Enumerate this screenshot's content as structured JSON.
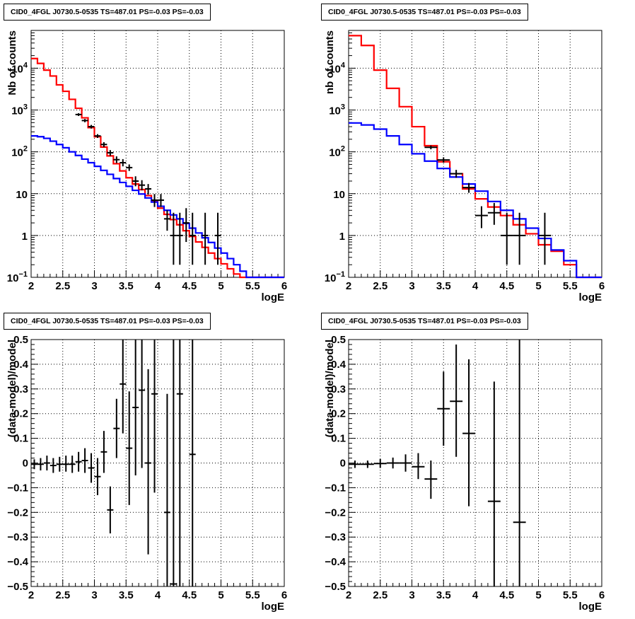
{
  "chart_data": [
    {
      "type": "line",
      "panel": "top-left",
      "title": "CID0_4FGL J0730.5-0535 TS=487.01 PS=-0.03 PS=-0.03",
      "xlabel": "logE",
      "ylabel": "Nb of counts",
      "xlim": [
        2,
        6
      ],
      "ylim": [
        0.1,
        80000
      ],
      "yscale": "log",
      "grid": true,
      "x_ticks": [
        "2",
        "2.5",
        "3",
        "3.5",
        "4",
        "4.5",
        "5",
        "5.5",
        "6"
      ],
      "y_ticks": [
        {
          "v": 0.1,
          "label": "10",
          "sup": "−1"
        },
        {
          "v": 1,
          "label": "1",
          "sup": ""
        },
        {
          "v": 10,
          "label": "10",
          "sup": ""
        },
        {
          "v": 100,
          "label": "10",
          "sup": "2"
        },
        {
          "v": 1000,
          "label": "10",
          "sup": "3"
        },
        {
          "v": 10000,
          "label": "10",
          "sup": "4"
        }
      ],
      "series": [
        {
          "kind": "step",
          "color": "#ff0000",
          "edges": [
            2.0,
            2.1,
            2.2,
            2.3,
            2.4,
            2.5,
            2.6,
            2.7,
            2.8,
            2.9,
            3.0,
            3.1,
            3.2,
            3.3,
            3.4,
            3.5,
            3.6,
            3.7,
            3.8,
            3.9,
            4.0,
            4.1,
            4.2,
            4.3,
            4.4,
            4.5,
            4.6,
            4.7,
            4.8,
            4.9,
            5.0,
            5.1,
            5.2,
            5.3,
            5.4,
            5.5,
            5.6,
            6.0
          ],
          "values": [
            17000,
            13000,
            9000,
            6500,
            4000,
            2800,
            1800,
            1100,
            650,
            380,
            230,
            130,
            80,
            52,
            35,
            24,
            17,
            12.5,
            9,
            6.5,
            4.5,
            3.2,
            2.4,
            1.8,
            1.3,
            0.95,
            0.7,
            0.52,
            0.38,
            0.28,
            0.21,
            0.16,
            0.12,
            0.1,
            0.1,
            0.1,
            0.1
          ]
        },
        {
          "kind": "step",
          "color": "#0000ff",
          "edges": [
            2.0,
            2.1,
            2.2,
            2.3,
            2.4,
            2.5,
            2.6,
            2.7,
            2.8,
            2.9,
            3.0,
            3.1,
            3.2,
            3.3,
            3.4,
            3.5,
            3.6,
            3.7,
            3.8,
            3.9,
            4.0,
            4.1,
            4.2,
            4.3,
            4.4,
            4.5,
            4.6,
            4.7,
            4.8,
            4.9,
            5.0,
            5.1,
            5.2,
            5.3,
            5.4,
            5.5,
            5.6,
            6.0
          ],
          "values": [
            240,
            230,
            210,
            180,
            150,
            125,
            100,
            82,
            67,
            55,
            45,
            36,
            29,
            23,
            18.5,
            15,
            12,
            9.8,
            7.9,
            6.3,
            5,
            4,
            3.1,
            2.5,
            1.95,
            1.5,
            1.15,
            0.88,
            0.68,
            0.5,
            0.38,
            0.28,
            0.2,
            0.14,
            0.1,
            0.1,
            0.1
          ]
        },
        {
          "kind": "errorbar",
          "color": "#000000",
          "points": [
            {
              "x": 2.75,
              "xe": 0.05,
              "y": 780,
              "lo": 720,
              "hi": 840
            },
            {
              "x": 2.85,
              "xe": 0.05,
              "y": 560,
              "lo": 510,
              "hi": 610
            },
            {
              "x": 2.95,
              "xe": 0.05,
              "y": 400,
              "lo": 360,
              "hi": 440
            },
            {
              "x": 3.05,
              "xe": 0.05,
              "y": 240,
              "lo": 215,
              "hi": 265
            },
            {
              "x": 3.15,
              "xe": 0.05,
              "y": 150,
              "lo": 130,
              "hi": 170
            },
            {
              "x": 3.25,
              "xe": 0.05,
              "y": 95,
              "lo": 80,
              "hi": 110
            },
            {
              "x": 3.35,
              "xe": 0.05,
              "y": 65,
              "lo": 54,
              "hi": 78
            },
            {
              "x": 3.45,
              "xe": 0.05,
              "y": 55,
              "lo": 45,
              "hi": 67
            },
            {
              "x": 3.55,
              "xe": 0.05,
              "y": 42,
              "lo": 35,
              "hi": 50
            },
            {
              "x": 3.65,
              "xe": 0.05,
              "y": 20,
              "lo": 15,
              "hi": 26
            },
            {
              "x": 3.75,
              "xe": 0.05,
              "y": 16,
              "lo": 12,
              "hi": 21
            },
            {
              "x": 3.85,
              "xe": 0.05,
              "y": 13,
              "lo": 9.5,
              "hi": 17
            },
            {
              "x": 3.95,
              "xe": 0.05,
              "y": 7,
              "lo": 4.8,
              "hi": 9.8
            },
            {
              "x": 4.05,
              "xe": 0.05,
              "y": 7,
              "lo": 4.8,
              "hi": 9.8
            },
            {
              "x": 4.15,
              "xe": 0.05,
              "y": 2.5,
              "lo": 1.3,
              "hi": 4
            },
            {
              "x": 4.25,
              "xe": 0.05,
              "y": 1,
              "lo": 0.2,
              "hi": 3.5
            },
            {
              "x": 4.35,
              "xe": 0.05,
              "y": 1,
              "lo": 0.2,
              "hi": 3.5
            },
            {
              "x": 4.45,
              "xe": 0.05,
              "y": 2,
              "lo": 0.7,
              "hi": 4.5
            },
            {
              "x": 4.55,
              "xe": 0.05,
              "y": 1,
              "lo": 0.2,
              "hi": 3.5
            },
            {
              "x": 4.75,
              "xe": 0.05,
              "y": 1,
              "lo": 0.2,
              "hi": 3.5
            },
            {
              "x": 4.95,
              "xe": 0.05,
              "y": 1,
              "lo": 0.2,
              "hi": 3.5
            }
          ]
        }
      ]
    },
    {
      "type": "line",
      "panel": "top-right",
      "title": "CID0_4FGL J0730.5-0535 TS=487.01 PS=-0.03 PS=-0.03",
      "xlabel": "logE",
      "ylabel": "nb of counts",
      "xlim": [
        2,
        6
      ],
      "ylim": [
        0.1,
        80000
      ],
      "yscale": "log",
      "grid": true,
      "x_ticks": [
        "2",
        "2.5",
        "3",
        "3.5",
        "4",
        "4.5",
        "5",
        "5.5",
        "6"
      ],
      "y_ticks": [
        {
          "v": 0.1,
          "label": "10",
          "sup": "−1"
        },
        {
          "v": 1,
          "label": "1",
          "sup": ""
        },
        {
          "v": 10,
          "label": "10",
          "sup": ""
        },
        {
          "v": 100,
          "label": "10",
          "sup": "2"
        },
        {
          "v": 1000,
          "label": "10",
          "sup": "3"
        },
        {
          "v": 10000,
          "label": "10",
          "sup": "4"
        }
      ],
      "series": [
        {
          "kind": "step",
          "color": "#ff0000",
          "edges": [
            2.0,
            2.2,
            2.4,
            2.6,
            2.8,
            3.0,
            3.2,
            3.4,
            3.6,
            3.8,
            4.0,
            4.2,
            4.4,
            4.6,
            4.8,
            5.0,
            5.2,
            5.4,
            5.6,
            6.0
          ],
          "values": [
            60000,
            35000,
            9000,
            3300,
            1200,
            400,
            140,
            58,
            30,
            13,
            7.5,
            4.8,
            3,
            1.8,
            1.1,
            0.6,
            0.42,
            0.2,
            0.1
          ]
        },
        {
          "kind": "step",
          "color": "#0000ff",
          "edges": [
            2.0,
            2.2,
            2.4,
            2.6,
            2.8,
            3.0,
            3.2,
            3.4,
            3.6,
            3.8,
            4.0,
            4.2,
            4.4,
            4.6,
            4.8,
            5.0,
            5.2,
            5.4,
            5.6,
            6.0
          ],
          "values": [
            490,
            440,
            350,
            240,
            150,
            90,
            60,
            40,
            25,
            17,
            11.5,
            6.5,
            4,
            2.5,
            1.5,
            0.85,
            0.45,
            0.25,
            0.1
          ]
        },
        {
          "kind": "errorbar",
          "color": "#000000",
          "points": [
            {
              "x": 3.3,
              "xe": 0.1,
              "y": 128,
              "lo": 115,
              "hi": 142
            },
            {
              "x": 3.5,
              "xe": 0.1,
              "y": 64,
              "lo": 55,
              "hi": 74
            },
            {
              "x": 3.7,
              "xe": 0.1,
              "y": 30,
              "lo": 24,
              "hi": 37
            },
            {
              "x": 3.9,
              "xe": 0.1,
              "y": 14,
              "lo": 10.5,
              "hi": 18
            },
            {
              "x": 4.1,
              "xe": 0.1,
              "y": 3,
              "lo": 1.5,
              "hi": 5
            },
            {
              "x": 4.3,
              "xe": 0.1,
              "y": 3.5,
              "lo": 1.8,
              "hi": 6
            },
            {
              "x": 4.5,
              "xe": 0.1,
              "y": 1,
              "lo": 0.2,
              "hi": 3.5
            },
            {
              "x": 4.7,
              "xe": 0.1,
              "y": 1,
              "lo": 0.2,
              "hi": 3.5
            },
            {
              "x": 5.1,
              "xe": 0.1,
              "y": 1,
              "lo": 0.2,
              "hi": 3.5
            }
          ]
        }
      ]
    },
    {
      "type": "scatter",
      "panel": "bottom-left",
      "title": "CID0_4FGL J0730.5-0535 TS=487.01 PS=-0.03 PS=-0.03",
      "xlabel": "logE",
      "ylabel": "(data-model)/model",
      "xlim": [
        2,
        6
      ],
      "ylim": [
        -0.5,
        0.5
      ],
      "grid": true,
      "x_ticks": [
        "2",
        "2.5",
        "3",
        "3.5",
        "4",
        "4.5",
        "5",
        "5.5",
        "6"
      ],
      "y_ticks": [
        "−0.5",
        "−0.4",
        "−0.3",
        "−0.2",
        "−0.1",
        "0",
        "0.1",
        "0.2",
        "0.3",
        "0.4",
        "0.5"
      ],
      "series": [
        {
          "kind": "errorbar",
          "color": "#000000",
          "points": [
            {
              "x": 2.05,
              "xe": 0.05,
              "y": -0.005,
              "lo": -0.025,
              "hi": 0.015
            },
            {
              "x": 2.15,
              "xe": 0.05,
              "y": -0.005,
              "lo": -0.03,
              "hi": 0.02
            },
            {
              "x": 2.25,
              "xe": 0.05,
              "y": 0.0,
              "lo": -0.03,
              "hi": 0.03
            },
            {
              "x": 2.35,
              "xe": 0.05,
              "y": -0.01,
              "lo": -0.04,
              "hi": 0.02
            },
            {
              "x": 2.45,
              "xe": 0.05,
              "y": -0.005,
              "lo": -0.035,
              "hi": 0.025
            },
            {
              "x": 2.55,
              "xe": 0.05,
              "y": -0.005,
              "lo": -0.035,
              "hi": 0.03
            },
            {
              "x": 2.65,
              "xe": 0.05,
              "y": -0.005,
              "lo": -0.04,
              "hi": 0.03
            },
            {
              "x": 2.75,
              "xe": 0.05,
              "y": 0.005,
              "lo": -0.035,
              "hi": 0.045
            },
            {
              "x": 2.85,
              "xe": 0.05,
              "y": 0.01,
              "lo": -0.04,
              "hi": 0.06
            },
            {
              "x": 2.95,
              "xe": 0.05,
              "y": -0.02,
              "lo": -0.08,
              "hi": 0.04
            },
            {
              "x": 3.05,
              "xe": 0.05,
              "y": -0.055,
              "lo": -0.13,
              "hi": 0.02
            },
            {
              "x": 3.15,
              "xe": 0.05,
              "y": 0.045,
              "lo": -0.04,
              "hi": 0.13
            },
            {
              "x": 3.25,
              "xe": 0.05,
              "y": -0.19,
              "lo": -0.285,
              "hi": -0.095
            },
            {
              "x": 3.35,
              "xe": 0.05,
              "y": 0.14,
              "lo": 0.02,
              "hi": 0.26
            },
            {
              "x": 3.45,
              "xe": 0.05,
              "y": 0.32,
              "lo": 0.12,
              "hi": 0.5
            },
            {
              "x": 3.55,
              "xe": 0.05,
              "y": 0.06,
              "lo": -0.17,
              "hi": 0.29
            },
            {
              "x": 3.65,
              "xe": 0.05,
              "y": 0.225,
              "lo": -0.05,
              "hi": 0.5
            },
            {
              "x": 3.75,
              "xe": 0.05,
              "y": 0.295,
              "lo": -0.02,
              "hi": 0.5
            },
            {
              "x": 3.85,
              "xe": 0.05,
              "y": 0.0,
              "lo": -0.37,
              "hi": 0.38
            },
            {
              "x": 3.95,
              "xe": 0.05,
              "y": 0.28,
              "lo": -0.12,
              "hi": 0.5
            },
            {
              "x": 4.15,
              "xe": 0.05,
              "y": -0.2,
              "lo": -0.5,
              "hi": 0.28
            },
            {
              "x": 4.25,
              "xe": 0.05,
              "y": -0.49,
              "lo": -0.5,
              "hi": 0.5
            },
            {
              "x": 4.35,
              "xe": 0.05,
              "y": 0.28,
              "lo": -0.5,
              "hi": 0.5
            },
            {
              "x": 4.55,
              "xe": 0.05,
              "y": 0.035,
              "lo": -0.5,
              "hi": 0.5
            }
          ]
        }
      ]
    },
    {
      "type": "scatter",
      "panel": "bottom-right",
      "title": "CID0_4FGL J0730.5-0535 TS=487.01 PS=-0.03 PS=-0.03",
      "xlabel": "logE",
      "ylabel": "(data-model)/model",
      "xlim": [
        2,
        6
      ],
      "ylim": [
        -0.5,
        0.5
      ],
      "grid": true,
      "x_ticks": [
        "2",
        "2.5",
        "3",
        "3.5",
        "4",
        "4.5",
        "5",
        "5.5",
        "6"
      ],
      "y_ticks": [
        "−0.5",
        "−0.4",
        "−0.3",
        "−0.2",
        "−0.1",
        "0",
        "0.1",
        "0.2",
        "0.3",
        "0.4",
        "0.5"
      ],
      "series": [
        {
          "kind": "errorbar",
          "color": "#000000",
          "points": [
            {
              "x": 2.1,
              "xe": 0.1,
              "y": -0.005,
              "lo": -0.02,
              "hi": 0.01
            },
            {
              "x": 2.3,
              "xe": 0.1,
              "y": -0.005,
              "lo": -0.02,
              "hi": 0.01
            },
            {
              "x": 2.5,
              "xe": 0.1,
              "y": -0.002,
              "lo": -0.02,
              "hi": 0.016
            },
            {
              "x": 2.7,
              "xe": 0.1,
              "y": 0.0,
              "lo": -0.022,
              "hi": 0.022
            },
            {
              "x": 2.9,
              "xe": 0.1,
              "y": 0.0,
              "lo": -0.035,
              "hi": 0.035
            },
            {
              "x": 3.1,
              "xe": 0.1,
              "y": -0.015,
              "lo": -0.065,
              "hi": 0.04
            },
            {
              "x": 3.3,
              "xe": 0.1,
              "y": -0.065,
              "lo": -0.145,
              "hi": 0.01
            },
            {
              "x": 3.5,
              "xe": 0.1,
              "y": 0.22,
              "lo": 0.07,
              "hi": 0.37
            },
            {
              "x": 3.7,
              "xe": 0.1,
              "y": 0.25,
              "lo": 0.025,
              "hi": 0.48
            },
            {
              "x": 3.9,
              "xe": 0.1,
              "y": 0.12,
              "lo": -0.175,
              "hi": 0.42
            },
            {
              "x": 4.3,
              "xe": 0.1,
              "y": -0.155,
              "lo": -0.5,
              "hi": 0.33
            },
            {
              "x": 4.7,
              "xe": 0.1,
              "y": -0.24,
              "lo": -0.5,
              "hi": 0.5
            }
          ]
        }
      ]
    }
  ]
}
